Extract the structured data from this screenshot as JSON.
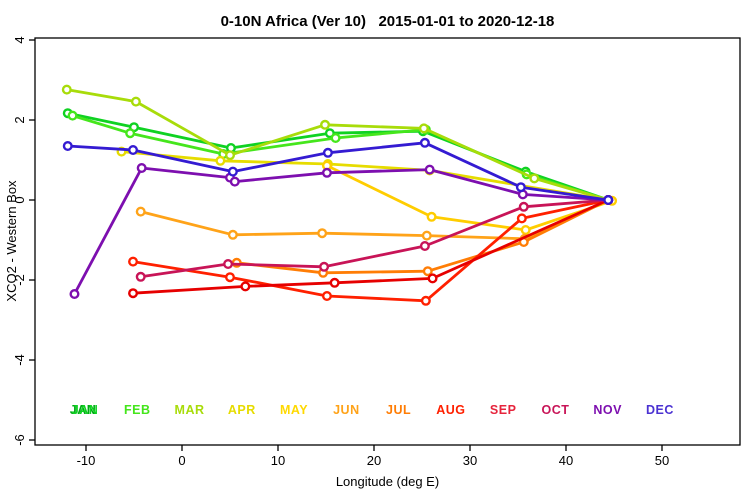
{
  "title": "0-10N Africa (Ver 10)   2015-01-01 to 2020-12-18",
  "axes": {
    "x": {
      "label": "Longitude (deg E)",
      "ticks": [
        -10,
        0,
        10,
        20,
        30,
        40,
        50
      ],
      "range": [
        -15.3,
        58.1
      ]
    },
    "y": {
      "label": "XCO2 - Western Box",
      "ticks": [
        -6,
        -4,
        -2,
        0,
        2,
        4
      ],
      "range": [
        -6.1,
        4.05
      ]
    }
  },
  "months_legend": [
    {
      "label": "JAN",
      "color": "#0fd222",
      "doubled": true,
      "shadow_color": "#00aa14"
    },
    {
      "label": "FEB",
      "color": "#45e61c",
      "doubled": false
    },
    {
      "label": "MAR",
      "color": "#a8dc0a",
      "doubled": false
    },
    {
      "label": "APR",
      "color": "#e6dc00",
      "doubled": false
    },
    {
      "label": "MAY",
      "color": "#ffd900",
      "doubled": false
    },
    {
      "label": "JUN",
      "color": "#ffa319",
      "doubled": false
    },
    {
      "label": "JUL",
      "color": "#ff7d05",
      "doubled": false
    },
    {
      "label": "AUG",
      "color": "#ff2000",
      "doubled": false
    },
    {
      "label": "SEP",
      "color": "#e6243c",
      "doubled": false
    },
    {
      "label": "OCT",
      "color": "#c81457",
      "doubled": false
    },
    {
      "label": "NOV",
      "color": "#7d0faf",
      "doubled": false
    },
    {
      "label": "DEC",
      "color": "#4b32d2",
      "doubled": false
    }
  ],
  "chart_data": {
    "type": "line",
    "title": "0-10N Africa (Ver 10)   2015-01-01 to 2020-12-18",
    "xlabel": "Longitude (deg E)",
    "ylabel": "XCO2 - Western Box",
    "xlim": [
      -15.3,
      58.1
    ],
    "ylim": [
      -6.1,
      4.05
    ],
    "grid": false,
    "legend_position": "bottom-inside",
    "marker": "open-circle",
    "series": [
      {
        "name": "JAN",
        "color": "#0fd222",
        "points": [
          [
            -11.9,
            2.17
          ],
          [
            -5.0,
            1.82
          ],
          [
            5.1,
            1.3
          ],
          [
            15.4,
            1.67
          ],
          [
            25.1,
            1.72
          ],
          [
            35.8,
            0.71
          ],
          [
            44.4,
            0.0
          ]
        ]
      },
      {
        "name": "FEB",
        "color": "#45e61c",
        "points": [
          [
            -11.4,
            2.11
          ],
          [
            -5.4,
            1.67
          ],
          [
            4.3,
            1.15
          ],
          [
            16.0,
            1.55
          ],
          [
            25.4,
            1.76
          ],
          [
            35.9,
            0.64
          ],
          [
            44.4,
            0.0
          ]
        ]
      },
      {
        "name": "MAR",
        "color": "#a8dc0a",
        "points": [
          [
            -12.0,
            2.76
          ],
          [
            -4.8,
            2.46
          ],
          [
            5.0,
            1.12
          ],
          [
            14.9,
            1.88
          ],
          [
            25.2,
            1.79
          ],
          [
            36.7,
            0.54
          ],
          [
            44.4,
            0.0
          ]
        ]
      },
      {
        "name": "APR",
        "color": "#e6dc00",
        "points": [
          [
            -6.3,
            1.21
          ],
          [
            4.0,
            0.98
          ],
          [
            15.2,
            0.9
          ],
          [
            25.8,
            0.74
          ],
          [
            44.4,
            0.0
          ]
        ]
      },
      {
        "name": "MAY",
        "color": "#ffcd00",
        "points": [
          [
            15.1,
            0.86
          ],
          [
            26.0,
            -0.42
          ],
          [
            35.8,
            -0.75
          ],
          [
            44.8,
            -0.02
          ]
        ]
      },
      {
        "name": "JUN",
        "color": "#ffa319",
        "points": [
          [
            -4.3,
            -0.29
          ],
          [
            5.3,
            -0.87
          ],
          [
            14.6,
            -0.83
          ],
          [
            25.5,
            -0.89
          ],
          [
            35.7,
            -0.97
          ],
          [
            44.4,
            0.0
          ]
        ]
      },
      {
        "name": "JUL",
        "color": "#ff7d05",
        "points": [
          [
            5.7,
            -1.57
          ],
          [
            14.7,
            -1.82
          ],
          [
            25.6,
            -1.78
          ],
          [
            35.6,
            -1.05
          ],
          [
            44.4,
            0.0
          ]
        ]
      },
      {
        "name": "AUG",
        "color": "#ff2000",
        "points": [
          [
            -5.1,
            -1.54
          ],
          [
            5.0,
            -1.93
          ],
          [
            15.1,
            -2.4
          ],
          [
            25.4,
            -2.52
          ],
          [
            35.4,
            -0.46
          ],
          [
            44.4,
            0.0
          ]
        ]
      },
      {
        "name": "SEP",
        "color": "#e60000",
        "points": [
          [
            -5.1,
            -2.33
          ],
          [
            6.6,
            -2.16
          ],
          [
            15.9,
            -2.07
          ],
          [
            26.1,
            -1.96
          ],
          [
            44.4,
            0.0
          ]
        ]
      },
      {
        "name": "OCT",
        "color": "#c81457",
        "points": [
          [
            -4.3,
            -1.92
          ],
          [
            4.8,
            -1.6
          ],
          [
            14.8,
            -1.67
          ],
          [
            25.3,
            -1.15
          ],
          [
            35.6,
            -0.17
          ],
          [
            44.4,
            0.0
          ]
        ]
      },
      {
        "name": "NOV",
        "color": "#7d0faf",
        "points": [
          [
            -11.2,
            -2.35
          ],
          [
            -4.2,
            0.8
          ],
          [
            5.0,
            0.56
          ],
          [
            5.5,
            0.46
          ],
          [
            15.1,
            0.68
          ],
          [
            25.8,
            0.76
          ],
          [
            35.5,
            0.14
          ],
          [
            44.4,
            0.0
          ]
        ]
      },
      {
        "name": "DEC",
        "color": "#341bd2",
        "points": [
          [
            -11.9,
            1.35
          ],
          [
            -5.1,
            1.25
          ],
          [
            5.3,
            0.71
          ],
          [
            15.2,
            1.18
          ],
          [
            25.3,
            1.43
          ],
          [
            35.3,
            0.32
          ],
          [
            44.4,
            0.0
          ]
        ]
      }
    ]
  }
}
